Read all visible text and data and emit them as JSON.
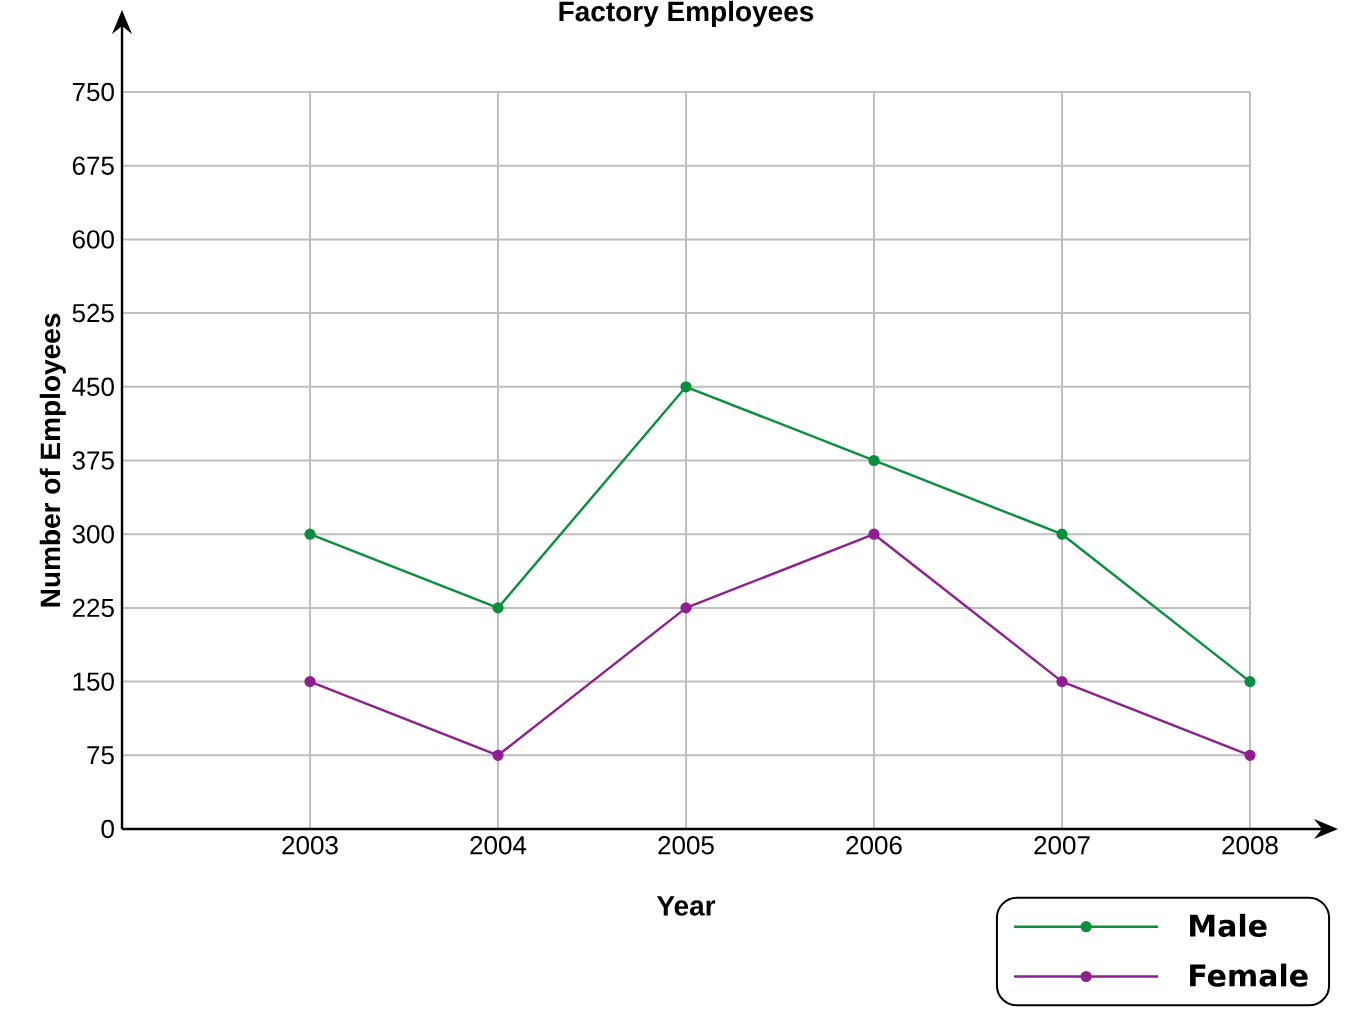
{
  "chart_data": {
    "type": "line",
    "title": "Factory Employees",
    "xlabel": "Year",
    "ylabel": "Number of Employees",
    "categories": [
      "2003",
      "2004",
      "2005",
      "2006",
      "2007",
      "2008"
    ],
    "series": [
      {
        "name": "Male",
        "color": "#0b8f3e",
        "values": [
          300,
          225,
          450,
          375,
          300,
          150
        ]
      },
      {
        "name": "Female",
        "color": "#8e1f8e",
        "values": [
          150,
          75,
          225,
          300,
          150,
          75
        ]
      }
    ],
    "ylim": [
      0,
      750
    ],
    "yticks": [
      0,
      75,
      150,
      225,
      300,
      375,
      450,
      525,
      600,
      675,
      750
    ],
    "grid": true,
    "legend": "bottom right",
    "marker": "circle",
    "line_style": "solid"
  }
}
